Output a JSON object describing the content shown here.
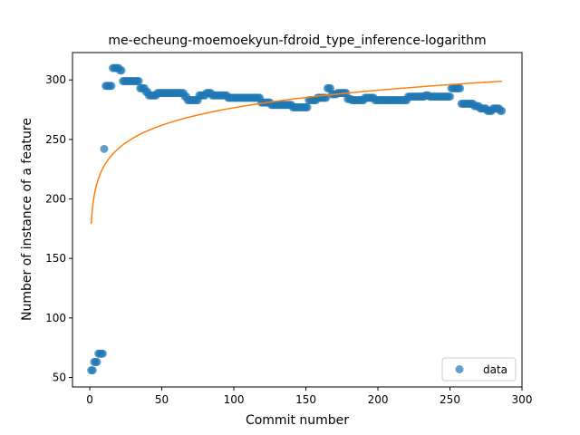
{
  "chart_data": {
    "type": "scatter",
    "title": "me-echeung-moemoekyun-fdroid_type_inference-logarithm",
    "xlabel": "Commit number",
    "ylabel": "Number of instance of a feature",
    "xlim": [
      -12,
      300
    ],
    "ylim": [
      42,
      323
    ],
    "xticks": [
      0,
      50,
      100,
      150,
      200,
      250,
      300
    ],
    "yticks": [
      50,
      100,
      150,
      200,
      250,
      300
    ],
    "grid": false,
    "legend": {
      "position": "lower-right",
      "entries": [
        "data"
      ]
    },
    "colors": {
      "data": "#1f77b4",
      "fit": "#ff7f0e"
    },
    "series": [
      {
        "name": "data",
        "kind": "scatter",
        "segments": [
          {
            "x_from": 1,
            "x_to": 2,
            "y": 56
          },
          {
            "x_from": 3,
            "x_to": 5,
            "y": 63
          },
          {
            "x_from": 6,
            "x_to": 9,
            "y": 70
          },
          {
            "x_from": 10,
            "x_to": 10,
            "y": 242
          },
          {
            "x_from": 11,
            "x_to": 15,
            "y": 295
          },
          {
            "x_from": 16,
            "x_to": 20,
            "y": 310
          },
          {
            "x_from": 21,
            "x_to": 22,
            "y": 308
          },
          {
            "x_from": 23,
            "x_to": 34,
            "y": 299
          },
          {
            "x_from": 35,
            "x_to": 38,
            "y": 293
          },
          {
            "x_from": 39,
            "x_to": 40,
            "y": 290
          },
          {
            "x_from": 41,
            "x_to": 46,
            "y": 287
          },
          {
            "x_from": 47,
            "x_to": 65,
            "y": 289
          },
          {
            "x_from": 66,
            "x_to": 67,
            "y": 286
          },
          {
            "x_from": 68,
            "x_to": 75,
            "y": 283
          },
          {
            "x_from": 76,
            "x_to": 80,
            "y": 287
          },
          {
            "x_from": 81,
            "x_to": 84,
            "y": 289
          },
          {
            "x_from": 85,
            "x_to": 95,
            "y": 287
          },
          {
            "x_from": 96,
            "x_to": 118,
            "y": 285
          },
          {
            "x_from": 119,
            "x_to": 125,
            "y": 281
          },
          {
            "x_from": 126,
            "x_to": 140,
            "y": 279
          },
          {
            "x_from": 141,
            "x_to": 151,
            "y": 277
          },
          {
            "x_from": 152,
            "x_to": 157,
            "y": 283
          },
          {
            "x_from": 158,
            "x_to": 164,
            "y": 285
          },
          {
            "x_from": 165,
            "x_to": 167,
            "y": 293
          },
          {
            "x_from": 168,
            "x_to": 171,
            "y": 288
          },
          {
            "x_from": 172,
            "x_to": 178,
            "y": 289
          },
          {
            "x_from": 179,
            "x_to": 181,
            "y": 284
          },
          {
            "x_from": 182,
            "x_to": 190,
            "y": 283
          },
          {
            "x_from": 191,
            "x_to": 197,
            "y": 285
          },
          {
            "x_from": 198,
            "x_to": 220,
            "y": 283
          },
          {
            "x_from": 221,
            "x_to": 232,
            "y": 286
          },
          {
            "x_from": 233,
            "x_to": 235,
            "y": 287
          },
          {
            "x_from": 236,
            "x_to": 250,
            "y": 286
          },
          {
            "x_from": 251,
            "x_to": 257,
            "y": 293
          },
          {
            "x_from": 258,
            "x_to": 266,
            "y": 280
          },
          {
            "x_from": 267,
            "x_to": 270,
            "y": 278
          },
          {
            "x_from": 271,
            "x_to": 275,
            "y": 276
          },
          {
            "x_from": 276,
            "x_to": 279,
            "y": 274
          },
          {
            "x_from": 280,
            "x_to": 284,
            "y": 276
          },
          {
            "x_from": 285,
            "x_to": 286,
            "y": 274
          }
        ]
      },
      {
        "name": "",
        "kind": "line",
        "fit": "logarithmic",
        "a": 179.0,
        "b": 21.2,
        "x_range": [
          1,
          286
        ]
      }
    ]
  }
}
